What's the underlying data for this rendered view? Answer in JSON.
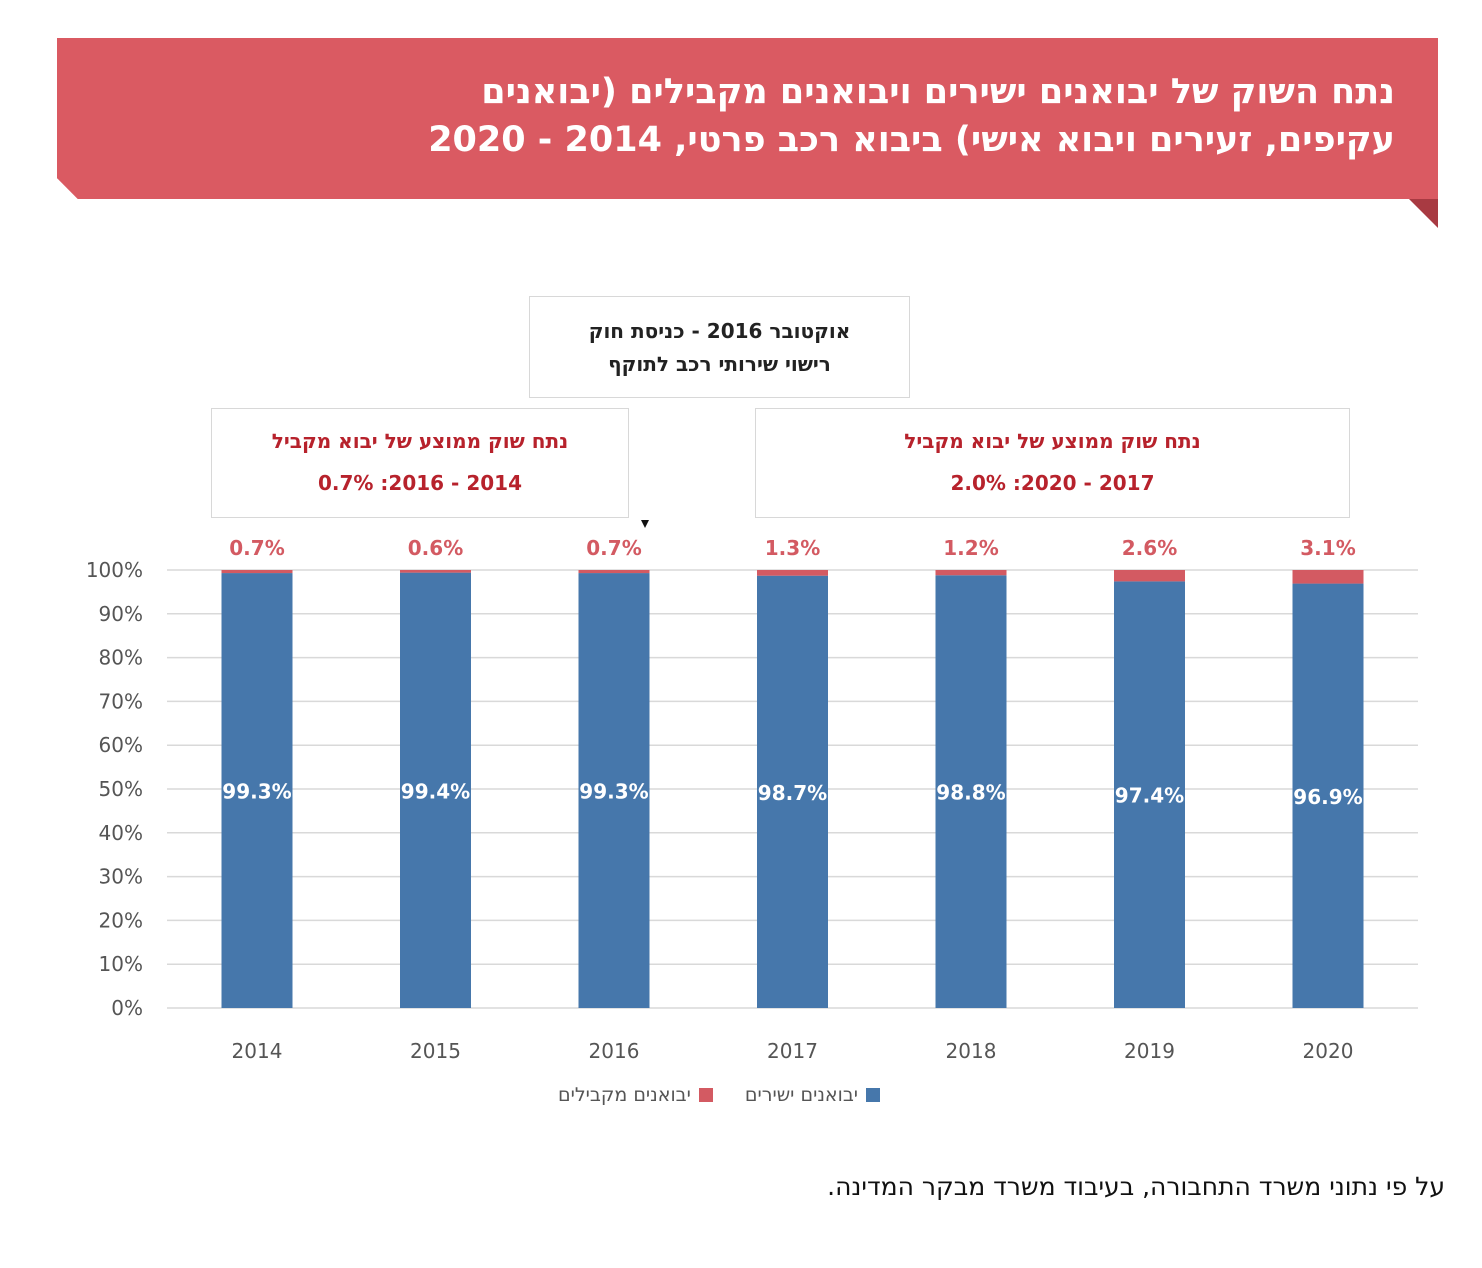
{
  "header": {
    "title_line1": "נתח השוק של יבואנים ישירים ויבואנים מקבילים (יבואנים",
    "title_line2": "עקיפים, זעירים ויבוא אישי) ביבוא רכב פרטי, 2014 - 2020"
  },
  "callouts": {
    "law_line1": "אוקטובר 2016 - כניסת חוק",
    "law_line2": "רישוי שירותי רכב לתוקף",
    "left_line1": "נתח שוק ממוצע של יבוא מקביל",
    "left_line2": "2014 - 2016: 0.7%",
    "right_line1": "נתח שוק ממוצע של יבוא מקביל",
    "right_line2": "2017 - 2020: 2.0%"
  },
  "chart_data": {
    "type": "bar",
    "stacked": true,
    "categories": [
      "2014",
      "2015",
      "2016",
      "2017",
      "2018",
      "2019",
      "2020"
    ],
    "series": [
      {
        "name": "יבואנים ישירים",
        "values": [
          99.3,
          99.4,
          99.3,
          98.7,
          98.8,
          97.4,
          96.9
        ],
        "color": "#4677ab",
        "labels": [
          "99.3%",
          "99.4%",
          "99.3%",
          "98.7%",
          "98.8%",
          "97.4%",
          "96.9%"
        ]
      },
      {
        "name": "יבואנים מקבילים",
        "values": [
          0.7,
          0.6,
          0.7,
          1.3,
          1.2,
          2.6,
          3.1
        ],
        "color": "#d35a62",
        "labels": [
          "0.7%",
          "0.6%",
          "0.7%",
          "1.3%",
          "1.2%",
          "2.6%",
          "3.1%"
        ]
      }
    ],
    "yticks": [
      "0%",
      "10%",
      "20%",
      "30%",
      "40%",
      "50%",
      "60%",
      "70%",
      "80%",
      "90%",
      "100%"
    ],
    "ylim": [
      0,
      100
    ],
    "grid": true,
    "legend_position": "bottom"
  },
  "source_note": "על פי נתוני משרד התחבורה, בעיבוד משרד מבקר המדינה."
}
